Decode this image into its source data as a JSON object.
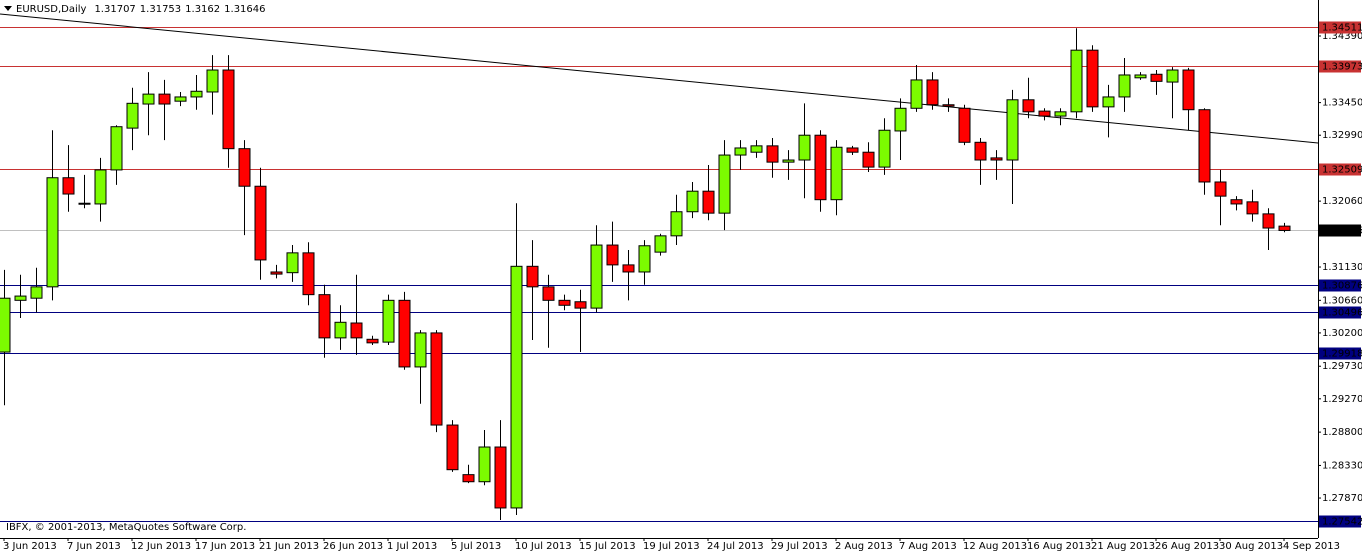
{
  "chart_data": {
    "type": "candlestick",
    "title": "EURUSD,Daily",
    "copyright": "IBFX, © 2001-2013, MetaQuotes Software Corp.",
    "categories": [
      "3 Jun 2013",
      null,
      null,
      null,
      "7 Jun 2013",
      null,
      null,
      null,
      "12 Jun 2013",
      null,
      null,
      null,
      "17 Jun 2013",
      null,
      null,
      null,
      "21 Jun 2013",
      null,
      null,
      null,
      "26 Jun 2013",
      null,
      null,
      null,
      "1 Jul 2013",
      null,
      null,
      null,
      "5 Jul 2013",
      null,
      null,
      null,
      "10 Jul 2013",
      null,
      null,
      null,
      "15 Jul 2013",
      null,
      null,
      null,
      "19 Jul 2013",
      null,
      null,
      null,
      "24 Jul 2013",
      null,
      null,
      null,
      "29 Jul 2013",
      null,
      null,
      null,
      "2 Aug 2013",
      null,
      null,
      null,
      "7 Aug 2013",
      null,
      null,
      null,
      "12 Aug 2013",
      null,
      null,
      null,
      "16 Aug 2013",
      null,
      null,
      null,
      "21 Aug 2013",
      null,
      null,
      null,
      "26 Aug 2013",
      null,
      null,
      null,
      "30 Aug 2013",
      null,
      null,
      null,
      "4 Sep 2013"
    ],
    "open": [
      1.2993,
      1.3066,
      1.3069,
      1.3085,
      1.3239,
      1.3202,
      1.3202,
      1.325,
      1.3309,
      1.3343,
      1.3357,
      1.3347,
      1.3353,
      1.336,
      1.3391,
      1.328,
      1.3227,
      1.3106,
      1.3105,
      1.3133,
      1.3074,
      1.3013,
      1.3034,
      1.3011,
      1.3007,
      1.3066,
      1.2972,
      1.302,
      1.289,
      1.282,
      1.281,
      1.2859,
      1.2773,
      1.3114,
      1.3085,
      1.3066,
      1.3064,
      1.3055,
      1.3144,
      1.3116,
      1.3106,
      1.3134,
      1.3157,
      1.3191,
      1.322,
      1.3189,
      1.3271,
      1.3275,
      1.3284,
      1.3261,
      1.3264,
      1.3299,
      1.3208,
      1.3281,
      1.3275,
      1.3254,
      1.3305,
      1.3337,
      1.3377,
      1.3342,
      1.3337,
      1.3289,
      1.3267,
      1.3264,
      1.3349,
      1.3333,
      1.3326,
      1.3332,
      1.3419,
      1.3339,
      1.3353,
      1.338,
      1.3385,
      1.3374,
      1.3391,
      1.3335,
      1.3233,
      1.3208,
      1.3205,
      1.3188,
      1.31707
    ],
    "high": [
      1.3109,
      1.3102,
      1.3112,
      1.3306,
      1.3285,
      1.3243,
      1.3267,
      1.3313,
      1.3366,
      1.3388,
      1.3377,
      1.336,
      1.3384,
      1.3412,
      1.3412,
      1.3292,
      1.3253,
      1.3116,
      1.3144,
      1.3148,
      1.3088,
      1.3059,
      1.3102,
      1.3016,
      1.3074,
      1.3078,
      1.3024,
      1.3024,
      1.2897,
      1.2834,
      1.2883,
      1.2897,
      1.3203,
      1.3151,
      1.3102,
      1.3074,
      1.3081,
      1.3172,
      1.3177,
      1.3137,
      1.3151,
      1.316,
      1.3215,
      1.3233,
      1.3257,
      1.3292,
      1.3292,
      1.3292,
      1.3295,
      1.3278,
      1.3344,
      1.3306,
      1.3292,
      1.3284,
      1.3289,
      1.3323,
      1.3351,
      1.3398,
      1.3388,
      1.3351,
      1.3342,
      1.3295,
      1.3278,
      1.3363,
      1.338,
      1.3337,
      1.3337,
      1.345,
      1.3426,
      1.337,
      1.3408,
      1.3388,
      1.3391,
      1.3395,
      1.3394,
      1.3337,
      1.325,
      1.3213,
      1.3222,
      1.3196,
      1.31753
    ],
    "low": [
      1.2918,
      1.3041,
      1.3049,
      1.3066,
      1.3191,
      1.3196,
      1.3177,
      1.3229,
      1.3278,
      1.3299,
      1.3292,
      1.334,
      1.3335,
      1.3328,
      1.3253,
      1.3158,
      1.3095,
      1.3097,
      1.3092,
      1.3059,
      1.2985,
      1.2996,
      1.2989,
      1.3003,
      1.3003,
      1.2968,
      1.292,
      1.288,
      1.2824,
      1.2808,
      1.2805,
      1.2756,
      1.2763,
      1.301,
      1.2999,
      1.3052,
      1.2993,
      1.3049,
      1.3092,
      1.3066,
      1.3088,
      1.3129,
      1.3144,
      1.3182,
      1.3179,
      1.3165,
      1.325,
      1.3267,
      1.3239,
      1.3236,
      1.321,
      1.3191,
      1.3186,
      1.3271,
      1.3247,
      1.3243,
      1.3264,
      1.3332,
      1.3335,
      1.3332,
      1.3285,
      1.3229,
      1.3236,
      1.3202,
      1.3323,
      1.332,
      1.3313,
      1.3323,
      1.3332,
      1.3296,
      1.3332,
      1.3377,
      1.3356,
      1.3323,
      1.3306,
      1.3215,
      1.3172,
      1.3193,
      1.3177,
      1.3137,
      1.3162
    ],
    "close": [
      1.3069,
      1.3072,
      1.3085,
      1.3239,
      1.3216,
      1.3203,
      1.325,
      1.3311,
      1.3344,
      1.3357,
      1.3343,
      1.3353,
      1.3361,
      1.3391,
      1.328,
      1.3227,
      1.3123,
      1.3103,
      1.3133,
      1.3074,
      1.3013,
      1.3035,
      1.3013,
      1.3006,
      1.3066,
      1.2972,
      1.302,
      1.289,
      1.2827,
      1.281,
      1.2859,
      1.2773,
      1.3114,
      1.3085,
      1.3066,
      1.3059,
      1.3055,
      1.3144,
      1.3116,
      1.3106,
      1.3143,
      1.3157,
      1.3191,
      1.322,
      1.3189,
      1.3271,
      1.3281,
      1.3284,
      1.3261,
      1.3264,
      1.3299,
      1.3208,
      1.3282,
      1.3275,
      1.3254,
      1.3306,
      1.3337,
      1.3377,
      1.3342,
      1.334,
      1.3289,
      1.3264,
      1.3264,
      1.3349,
      1.3332,
      1.3326,
      1.3332,
      1.3419,
      1.3339,
      1.3353,
      1.3384,
      1.3384,
      1.3375,
      1.3391,
      1.3335,
      1.3233,
      1.3213,
      1.3202,
      1.3188,
      1.3168,
      1.31646
    ],
    "up_color": "#7cfc00",
    "down_color": "#ff0000",
    "ylim": [
      1.27306,
      1.34898
    ],
    "yticks": [
      {
        "value": 1.3439,
        "label": "1.34390"
      },
      {
        "value": 1.3345,
        "label": "1.33450"
      },
      {
        "value": 1.3299,
        "label": "1.32990"
      },
      {
        "value": 1.3206,
        "label": "1.32060"
      },
      {
        "value": 1.3113,
        "label": "1.31130"
      },
      {
        "value": 1.3066,
        "label": "1.30660"
      },
      {
        "value": 1.302,
        "label": "1.30200"
      },
      {
        "value": 1.2973,
        "label": "1.29730"
      },
      {
        "value": 1.2927,
        "label": "1.29270"
      },
      {
        "value": 1.288,
        "label": "1.28800"
      },
      {
        "value": 1.2833,
        "label": "1.28330"
      },
      {
        "value": 1.2787,
        "label": "1.27870"
      }
    ],
    "levels": [
      {
        "value": 1.34511,
        "color": "#c83232"
      },
      {
        "value": 1.33973,
        "color": "#c83232"
      },
      {
        "value": 1.32509,
        "color": "#c83232"
      },
      {
        "value": 1.30876,
        "color": "#000080"
      },
      {
        "value": 1.30496,
        "color": "#000080"
      },
      {
        "value": 1.29918,
        "color": "#000080"
      },
      {
        "value": 1.27542,
        "color": "#000080"
      }
    ],
    "trendline": [
      1.347,
      1.3288
    ]
  }
}
